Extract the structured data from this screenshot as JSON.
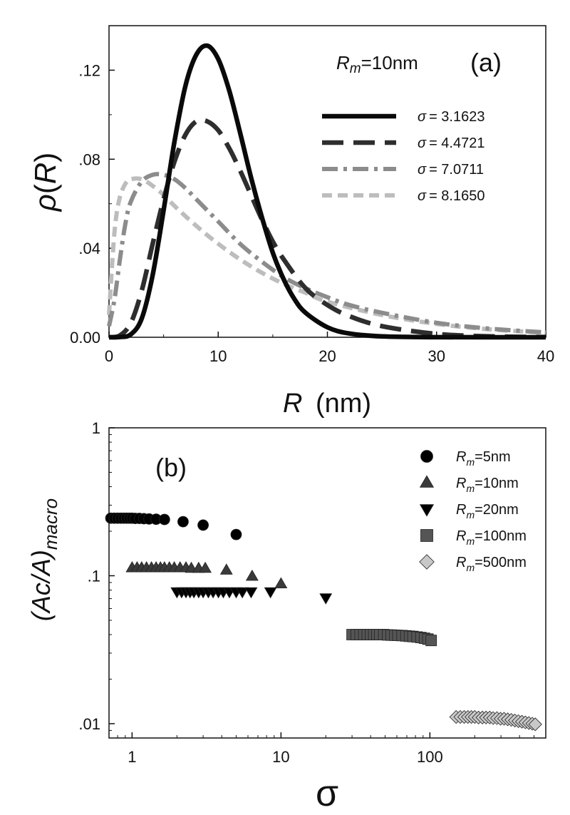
{
  "chart_data": [
    {
      "id": "a",
      "type": "line",
      "panel_label": "(a)",
      "annotation": {
        "symbol": "R",
        "subscript": "m",
        "text": "=10nm"
      },
      "xlabel": {
        "symbol": "R",
        "unit": "(nm)"
      },
      "ylabel": {
        "symbol": "ρ",
        "arg": "R"
      },
      "xlim": [
        0,
        40
      ],
      "ylim": [
        0,
        0.14
      ],
      "xticks": [
        0,
        10,
        20,
        30,
        40
      ],
      "xtick_labels": [
        "0",
        "10",
        "20",
        "30",
        "40"
      ],
      "yticks": [
        0,
        0.04,
        0.08,
        0.12
      ],
      "ytick_labels": [
        "0.00",
        ".04",
        ".08",
        ".12"
      ],
      "legend_position": "top-right",
      "series": [
        {
          "name": "σ = 3.1623",
          "sym": "σ",
          "val": "= 3.1623",
          "color": "#0a0a0a",
          "dash": "solid",
          "x": [
            0,
            1,
            2,
            3,
            4,
            5,
            6,
            7,
            8,
            9,
            10,
            11,
            12,
            13,
            14,
            15,
            16,
            17,
            18,
            20,
            22,
            25,
            30,
            35,
            40
          ],
          "y": [
            0,
            0.0001,
            0.0013,
            0.0085,
            0.028,
            0.057,
            0.088,
            0.113,
            0.127,
            0.131,
            0.125,
            0.111,
            0.092,
            0.072,
            0.054,
            0.038,
            0.026,
            0.017,
            0.011,
            0.0045,
            0.0017,
            0.0004,
            2e-05,
            0,
            0
          ]
        },
        {
          "name": "σ = 4.4721",
          "sym": "σ",
          "val": "= 4.4721",
          "color": "#2e2e2e",
          "dash": "long-dash",
          "x": [
            0,
            1,
            2,
            3,
            4,
            5,
            6,
            7,
            8,
            9,
            10,
            11,
            12,
            13,
            14,
            15,
            16,
            18,
            20,
            22,
            25,
            30,
            35,
            40
          ],
          "y": [
            0,
            0.0008,
            0.0065,
            0.021,
            0.042,
            0.062,
            0.079,
            0.091,
            0.097,
            0.097,
            0.093,
            0.085,
            0.075,
            0.064,
            0.053,
            0.043,
            0.035,
            0.022,
            0.0145,
            0.0095,
            0.005,
            0.0015,
            0.0004,
            0.0001
          ]
        },
        {
          "name": "σ = 7.0711",
          "sym": "σ",
          "val": "= 7.0711",
          "color": "#8c8c8c",
          "dash": "dash-dot",
          "x": [
            0,
            0.5,
            1,
            1.5,
            2,
            3,
            4,
            5,
            6,
            7,
            8,
            10,
            12,
            14,
            16,
            18,
            20,
            22,
            25,
            30,
            35,
            40
          ],
          "y": [
            0.005,
            0.017,
            0.035,
            0.051,
            0.061,
            0.07,
            0.073,
            0.073,
            0.071,
            0.067,
            0.062,
            0.052,
            0.042,
            0.034,
            0.027,
            0.022,
            0.018,
            0.0145,
            0.011,
            0.0065,
            0.0038,
            0.0022
          ]
        },
        {
          "name": "σ = 8.1650",
          "sym": "σ",
          "val": "= 8.1650",
          "color": "#bdbdbd",
          "dash": "short-dash",
          "x": [
            0,
            0.3,
            0.6,
            1,
            1.5,
            2,
            3,
            4,
            5,
            6,
            8,
            10,
            12,
            14,
            16,
            18,
            20,
            25,
            30,
            35,
            40
          ],
          "y": [
            0.01,
            0.034,
            0.052,
            0.063,
            0.069,
            0.071,
            0.071,
            0.068,
            0.064,
            0.059,
            0.05,
            0.042,
            0.035,
            0.029,
            0.024,
            0.02,
            0.016,
            0.01,
            0.006,
            0.0035,
            0.002
          ]
        }
      ]
    },
    {
      "id": "b",
      "type": "scatter",
      "panel_label": "(b)",
      "xscale": "log",
      "yscale": "log",
      "xlabel": {
        "symbol": "σ"
      },
      "ylabel": {
        "main": "(Ac/A)",
        "subscript": "macro"
      },
      "xlim": [
        0.7,
        600
      ],
      "ylim": [
        0.008,
        1
      ],
      "xticks": [
        1,
        10,
        100
      ],
      "xtick_labels": [
        "1",
        "10",
        "100"
      ],
      "yticks": [
        0.01,
        0.1,
        1
      ],
      "ytick_labels": [
        ".01",
        ".1",
        "1"
      ],
      "legend_position": "top-right",
      "series": [
        {
          "name": "Rm=5nm",
          "sym": "R",
          "sub": "m",
          "val": "=5nm",
          "marker": "circle",
          "color": "#000000",
          "x": [
            0.72,
            0.76,
            0.8,
            0.84,
            0.88,
            0.92,
            0.96,
            1.0,
            1.05,
            1.12,
            1.2,
            1.3,
            1.45,
            1.65,
            2.2,
            3.0,
            5.0
          ],
          "y": [
            0.245,
            0.245,
            0.245,
            0.245,
            0.245,
            0.245,
            0.245,
            0.245,
            0.244,
            0.244,
            0.243,
            0.242,
            0.241,
            0.24,
            0.232,
            0.22,
            0.19
          ]
        },
        {
          "name": "Rm=10nm",
          "sym": "R",
          "sub": "m",
          "val": "=10nm",
          "marker": "triangle-up",
          "color": "#3a3a3a",
          "x": [
            1.0,
            1.08,
            1.16,
            1.25,
            1.35,
            1.45,
            1.55,
            1.65,
            1.78,
            1.92,
            2.1,
            2.3,
            2.5,
            2.8,
            3.1,
            4.3,
            6.4,
            10.0
          ],
          "y": [
            0.113,
            0.113,
            0.113,
            0.113,
            0.113,
            0.113,
            0.113,
            0.113,
            0.113,
            0.113,
            0.113,
            0.113,
            0.112,
            0.112,
            0.112,
            0.109,
            0.099,
            0.088
          ]
        },
        {
          "name": "Rm=20nm",
          "sym": "R",
          "sub": "m",
          "val": "=20nm",
          "marker": "triangle-down",
          "color": "#000000",
          "x": [
            2.0,
            2.15,
            2.3,
            2.45,
            2.6,
            2.8,
            3.0,
            3.25,
            3.5,
            3.8,
            4.1,
            4.5,
            5.0,
            5.5,
            6.3,
            8.5,
            20.0
          ],
          "y": [
            0.078,
            0.078,
            0.078,
            0.078,
            0.078,
            0.078,
            0.078,
            0.078,
            0.078,
            0.078,
            0.078,
            0.078,
            0.078,
            0.078,
            0.078,
            0.078,
            0.071
          ]
        },
        {
          "name": "Rm=100nm",
          "sym": "R",
          "sub": "m",
          "val": "=100nm",
          "marker": "square",
          "color": "#555555",
          "x": [
            30,
            32,
            34,
            36,
            38,
            40,
            42,
            44,
            46,
            49,
            52,
            55,
            58,
            61,
            65,
            69,
            73,
            77,
            82,
            87,
            92,
            97,
            102
          ],
          "y": [
            0.04,
            0.04,
            0.04,
            0.04,
            0.04,
            0.04,
            0.04,
            0.04,
            0.04,
            0.04,
            0.0398,
            0.0397,
            0.0396,
            0.0395,
            0.0394,
            0.0392,
            0.039,
            0.0388,
            0.0385,
            0.0382,
            0.0378,
            0.0373,
            0.0365
          ]
        },
        {
          "name": "Rm=500nm",
          "sym": "R",
          "sub": "m",
          "val": "=500nm",
          "marker": "diamond",
          "color": "#c8c8c8",
          "x": [
            150,
            160,
            170,
            180,
            190,
            200,
            212,
            225,
            238,
            252,
            266,
            282,
            298,
            315,
            333,
            352,
            372,
            393,
            415,
            438,
            462,
            487,
            510
          ],
          "y": [
            0.0111,
            0.0111,
            0.0111,
            0.0111,
            0.0111,
            0.0111,
            0.011,
            0.011,
            0.011,
            0.011,
            0.0109,
            0.0109,
            0.0108,
            0.0108,
            0.0107,
            0.0106,
            0.0105,
            0.0104,
            0.0103,
            0.0102,
            0.0101,
            0.01,
            0.0099
          ]
        }
      ]
    }
  ]
}
